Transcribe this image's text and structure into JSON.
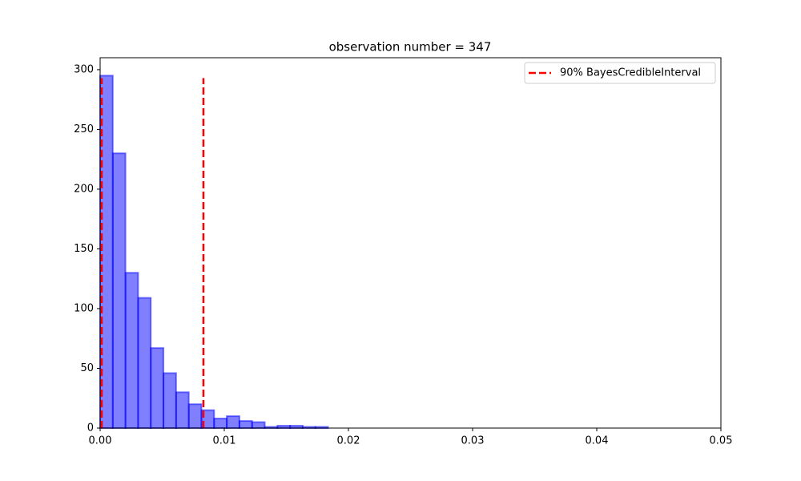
{
  "chart_data": {
    "type": "histogram",
    "title": "observation number = 347",
    "bins": [
      0,
      0.00102,
      0.00204,
      0.00306,
      0.00408,
      0.0051,
      0.00612,
      0.00714,
      0.00816,
      0.00918,
      0.0102,
      0.01122,
      0.01224,
      0.01326,
      0.01428,
      0.0153,
      0.01632,
      0.01734,
      0.01836
    ],
    "values": [
      295,
      230,
      130,
      109,
      67,
      46,
      30,
      20,
      15,
      8,
      10,
      6,
      5,
      1,
      2,
      2,
      1,
      1
    ],
    "color": "#0000ff",
    "reference_lines": {
      "name": "90% BayesCredibleInterval",
      "color": "#ff0000",
      "x": [
        0.00013,
        0.00832
      ],
      "ymax": 293
    },
    "xlim": [
      0,
      0.05
    ],
    "xticks": [
      {
        "value": 0,
        "label": "0.00"
      },
      {
        "value": 0.01,
        "label": "0.01"
      },
      {
        "value": 0.02,
        "label": "0.02"
      },
      {
        "value": 0.03,
        "label": "0.03"
      },
      {
        "value": 0.04,
        "label": "0.04"
      },
      {
        "value": 0.05,
        "label": "0.05"
      }
    ],
    "ylim": [
      0,
      310
    ],
    "yticks": [
      0,
      50,
      100,
      150,
      200,
      250,
      300
    ],
    "legend": "upper right"
  }
}
